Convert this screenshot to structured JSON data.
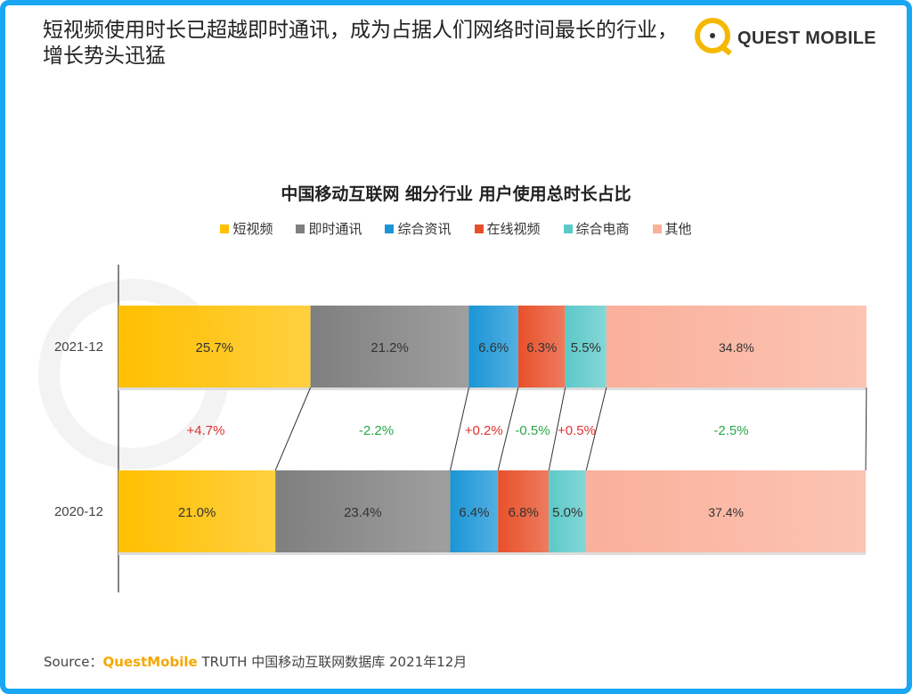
{
  "headline": "短视频使用时长已超越即时通讯，成为占据人们网络时间最长的行业，增长势头迅猛",
  "logo": {
    "text": "QUEST MOBILE",
    "color": "#f5b800"
  },
  "chart_data": {
    "type": "bar",
    "orientation": "horizontal",
    "stacked": "100%",
    "title": "中国移动互联网 细分行业 用户使用总时长占比",
    "legend_position": "top",
    "categories": [
      "2021-12",
      "2020-12"
    ],
    "series": [
      {
        "name": "短视频",
        "color": "#ffc000",
        "values": [
          25.7,
          21.0
        ],
        "labels": [
          "25.7%",
          "21.0%"
        ]
      },
      {
        "name": "即时通讯",
        "color": "#7f7f7f",
        "values": [
          21.2,
          23.4
        ],
        "labels": [
          "21.2%",
          "23.4%"
        ]
      },
      {
        "name": "综合资讯",
        "color": "#1a95d6",
        "values": [
          6.6,
          6.4
        ],
        "labels": [
          "6.6%",
          "6.4%"
        ]
      },
      {
        "name": "在线视频",
        "color": "#e8502a",
        "values": [
          6.3,
          6.8
        ],
        "labels": [
          "6.3%",
          "6.8%"
        ]
      },
      {
        "name": "综合电商",
        "color": "#5cc9c9",
        "values": [
          5.5,
          5.0
        ],
        "labels": [
          "5.5%",
          "5.0%"
        ]
      },
      {
        "name": "其他",
        "color": "#fab09a",
        "values": [
          34.8,
          37.4
        ],
        "labels": [
          "34.8%",
          "37.4%"
        ]
      }
    ],
    "changes": [
      "+4.7%",
      "-2.2%",
      "+0.2%",
      "-0.5%",
      "+0.5%",
      "-2.5%"
    ],
    "change_colors": {
      "up": "#e03030",
      "down": "#2aa84a"
    },
    "xlim": [
      0,
      100
    ],
    "grid": false
  },
  "source": {
    "prefix": "Source：",
    "brand": "QuestMobile",
    "rest": " TRUTH 中国移动互联网数据库 2021年12月"
  }
}
